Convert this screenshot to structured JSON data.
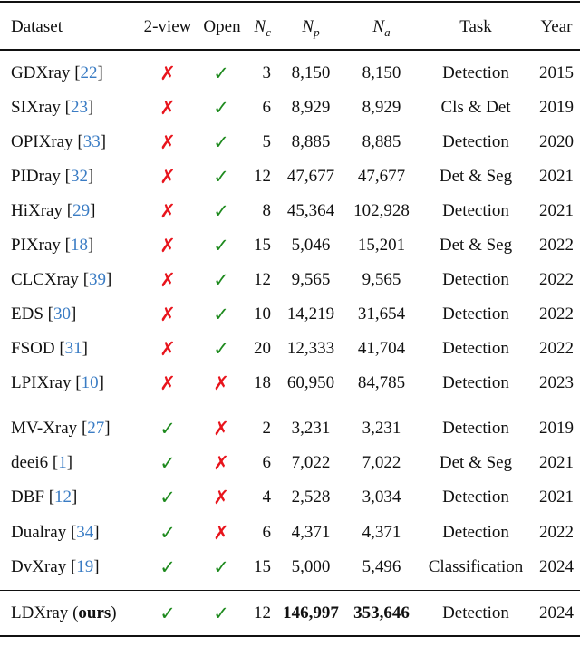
{
  "headers": {
    "dataset": "Dataset",
    "two_view": "2-view",
    "open": "Open",
    "nc": "N",
    "nc_sub": "c",
    "np": "N",
    "np_sub": "p",
    "na": "N",
    "na_sub": "a",
    "task": "Task",
    "year": "Year"
  },
  "icons": {
    "yes": "✓",
    "no": "✗",
    "yes_color": "#1e8a1e",
    "no_color": "#e8141c"
  },
  "groups": [
    [
      {
        "name": "GDXray",
        "ref": "22",
        "two_view": false,
        "open": true,
        "nc": "3",
        "np": "8,150",
        "na": "8,150",
        "task": "Detection",
        "year": "2015"
      },
      {
        "name": "SIXray",
        "ref": "23",
        "two_view": false,
        "open": true,
        "nc": "6",
        "np": "8,929",
        "na": "8,929",
        "task": "Cls & Det",
        "year": "2019"
      },
      {
        "name": "OPIXray",
        "ref": "33",
        "two_view": false,
        "open": true,
        "nc": "5",
        "np": "8,885",
        "na": "8,885",
        "task": "Detection",
        "year": "2020"
      },
      {
        "name": "PIDray",
        "ref": "32",
        "two_view": false,
        "open": true,
        "nc": "12",
        "np": "47,677",
        "na": "47,677",
        "task": "Det & Seg",
        "year": "2021"
      },
      {
        "name": "HiXray",
        "ref": "29",
        "two_view": false,
        "open": true,
        "nc": "8",
        "np": "45,364",
        "na": "102,928",
        "task": "Detection",
        "year": "2021"
      },
      {
        "name": "PIXray",
        "ref": "18",
        "two_view": false,
        "open": true,
        "nc": "15",
        "np": "5,046",
        "na": "15,201",
        "task": "Det & Seg",
        "year": "2022"
      },
      {
        "name": "CLCXray",
        "ref": "39",
        "two_view": false,
        "open": true,
        "nc": "12",
        "np": "9,565",
        "na": "9,565",
        "task": "Detection",
        "year": "2022"
      },
      {
        "name": "EDS",
        "ref": "30",
        "two_view": false,
        "open": true,
        "nc": "10",
        "np": "14,219",
        "na": "31,654",
        "task": "Detection",
        "year": "2022"
      },
      {
        "name": "FSOD",
        "ref": "31",
        "two_view": false,
        "open": true,
        "nc": "20",
        "np": "12,333",
        "na": "41,704",
        "task": "Detection",
        "year": "2022"
      },
      {
        "name": "LPIXray",
        "ref": "10",
        "two_view": false,
        "open": false,
        "nc": "18",
        "np": "60,950",
        "na": "84,785",
        "task": "Detection",
        "year": "2023"
      }
    ],
    [
      {
        "name": "MV-Xray",
        "ref": "27",
        "two_view": true,
        "open": false,
        "nc": "2",
        "np": "3,231",
        "na": "3,231",
        "task": "Detection",
        "year": "2019"
      },
      {
        "name": "deei6",
        "ref": "1",
        "two_view": true,
        "open": false,
        "nc": "6",
        "np": "7,022",
        "na": "7,022",
        "task": "Det & Seg",
        "year": "2021"
      },
      {
        "name": "DBF",
        "ref": "12",
        "two_view": true,
        "open": false,
        "nc": "4",
        "np": "2,528",
        "na": "3,034",
        "task": "Detection",
        "year": "2021"
      },
      {
        "name": "Dualray",
        "ref": "34",
        "two_view": true,
        "open": false,
        "nc": "6",
        "np": "4,371",
        "na": "4,371",
        "task": "Detection",
        "year": "2022"
      },
      {
        "name": "DvXray",
        "ref": "19",
        "two_view": true,
        "open": true,
        "nc": "15",
        "np": "5,000",
        "na": "5,496",
        "task": "Classification",
        "year": "2024"
      }
    ]
  ],
  "ours": {
    "name": "LDXray",
    "suffix": "ours",
    "two_view": true,
    "open": true,
    "nc": "12",
    "np": "146,997",
    "na": "353,646",
    "task": "Detection",
    "year": "2024"
  }
}
